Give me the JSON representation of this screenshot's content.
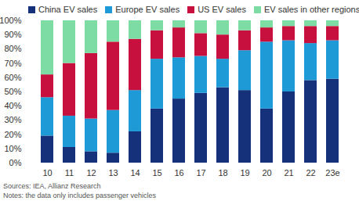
{
  "chart_data": {
    "type": "bar",
    "stacked": true,
    "legend": "top",
    "grid": false,
    "data_labels": false,
    "categories": [
      "10",
      "11",
      "12",
      "13",
      "14",
      "15",
      "16",
      "17",
      "18",
      "19",
      "20",
      "21",
      "22",
      "23e"
    ],
    "series": [
      {
        "name": "China EV sales",
        "color": "#15317a",
        "values": [
          19,
          11,
          8,
          7,
          22,
          38,
          45,
          49,
          53,
          51,
          38,
          50,
          58,
          59
        ]
      },
      {
        "name": "Europe EV sales",
        "color": "#1e9ad6",
        "values": [
          27,
          22,
          23,
          30,
          29,
          35,
          29,
          26,
          20,
          28,
          47,
          36,
          26,
          27
        ]
      },
      {
        "name": "US EV sales",
        "color": "#c8103e",
        "values": [
          16,
          37,
          46,
          48,
          36,
          20,
          21,
          16,
          17,
          14,
          10,
          10,
          12,
          10
        ]
      },
      {
        "name": "EV sales in other regions",
        "color": "#7ddba4",
        "values": [
          38,
          30,
          23,
          15,
          13,
          7,
          5,
          9,
          10,
          7,
          5,
          4,
          4,
          4
        ]
      }
    ],
    "ylim": [
      0,
      100
    ],
    "yticks": [
      {
        "value": 0,
        "label": "0%"
      },
      {
        "value": 10,
        "label": "10%"
      },
      {
        "value": 20,
        "label": "20%"
      },
      {
        "value": 30,
        "label": "30%"
      },
      {
        "value": 40,
        "label": "40%"
      },
      {
        "value": 50,
        "label": "50%"
      },
      {
        "value": 60,
        "label": "60%"
      },
      {
        "value": 70,
        "label": "70%"
      },
      {
        "value": 80,
        "label": "80%"
      },
      {
        "value": 90,
        "label": "90%"
      },
      {
        "value": 100,
        "label": "100%"
      }
    ],
    "notes": [
      "Sources: IEA, Allianz Research",
      "Notes: the data only includes passenger vehicles"
    ]
  }
}
